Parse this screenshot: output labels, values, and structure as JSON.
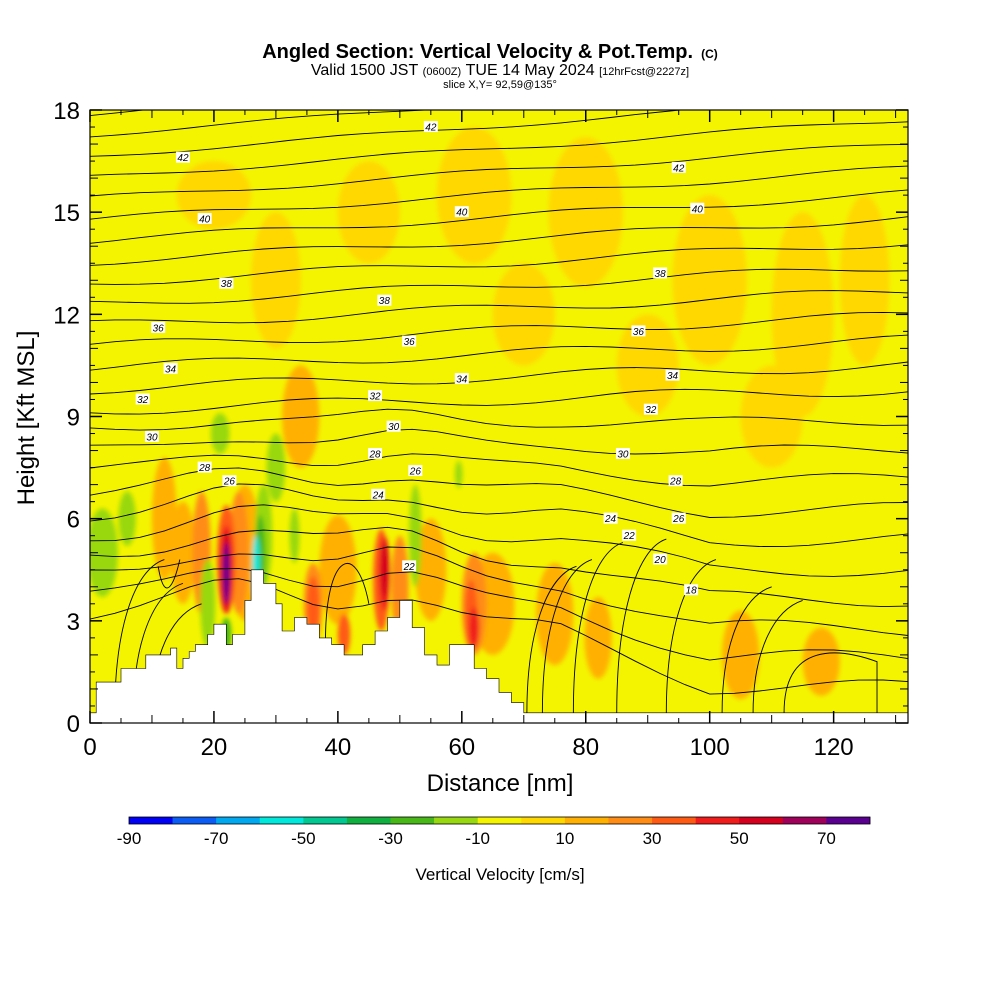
{
  "chart_data": {
    "type": "heatmap",
    "title": "Angled Section: Vertical Velocity & Pot.Temp.",
    "title_suffix": "(C)",
    "subtitle": {
      "valid_a": "Valid 1500 JST",
      "utc": "(0600Z)",
      "valid_b": "TUE 14 May 2024",
      "forecast": "[12hrFcst@2227z]"
    },
    "slice_label": "slice X,Y= 92,59@135°",
    "xlabel": "Distance [nm]",
    "ylabel": "Height [Kft MSL]",
    "xlim": [
      0,
      132
    ],
    "ylim": [
      0,
      18
    ],
    "x_ticks": [
      "0",
      "20",
      "40",
      "60",
      "80",
      "100",
      "120"
    ],
    "y_ticks": [
      "0",
      "3",
      "6",
      "9",
      "12",
      "15",
      "18"
    ],
    "colorbar": {
      "label": "Vertical Velocity [cm/s]",
      "bounds": [
        -90,
        -80,
        -70,
        -60,
        -50,
        -40,
        -30,
        -20,
        -10,
        0,
        10,
        20,
        30,
        40,
        50,
        60,
        70,
        80
      ],
      "tick_labels": [
        "-90",
        "-70",
        "-50",
        "-30",
        "-10",
        "10",
        "30",
        "50",
        "70"
      ],
      "colors": [
        "#0000f5",
        "#0a5cf5",
        "#00a8f0",
        "#00e8dc",
        "#00c890",
        "#10b040",
        "#48b818",
        "#98d810",
        "#f4f400",
        "#ffd800",
        "#ffb000",
        "#ff8c14",
        "#ff5a14",
        "#f01c1c",
        "#d4001e",
        "#9e005a",
        "#5a0090"
      ]
    },
    "terrain_profile": {
      "x": [
        0,
        1,
        1,
        5,
        5,
        9,
        9,
        13,
        13,
        14,
        14,
        15,
        15,
        16,
        16,
        17,
        17,
        19,
        19,
        20,
        20,
        22,
        22,
        23,
        23,
        25,
        25,
        26,
        26,
        28,
        28,
        30,
        30,
        31,
        31,
        33,
        33,
        35,
        35,
        37,
        37,
        39,
        39,
        41,
        41,
        44,
        44,
        46,
        46,
        48,
        48,
        50,
        50,
        52,
        52,
        54,
        54,
        56,
        56,
        58,
        58,
        62,
        62,
        64,
        64,
        66,
        66,
        68,
        68,
        70,
        70,
        132
      ],
      "y": [
        0.3,
        0.3,
        1.2,
        1.2,
        1.6,
        1.6,
        2.0,
        2.0,
        2.2,
        2.2,
        1.6,
        1.6,
        1.9,
        1.9,
        2.1,
        2.1,
        2.3,
        2.3,
        2.6,
        2.6,
        2.9,
        2.9,
        2.3,
        2.3,
        2.6,
        2.6,
        3.6,
        3.6,
        4.5,
        4.5,
        4.1,
        4.1,
        3.5,
        3.5,
        2.7,
        2.7,
        3.1,
        3.1,
        2.9,
        2.9,
        2.5,
        2.5,
        2.3,
        2.3,
        2.0,
        2.0,
        2.3,
        2.3,
        2.7,
        2.7,
        3.1,
        3.1,
        3.6,
        3.6,
        2.8,
        2.8,
        2.0,
        2.0,
        1.7,
        1.7,
        2.3,
        2.3,
        1.6,
        1.6,
        1.3,
        1.3,
        0.9,
        0.9,
        0.6,
        0.6,
        0.3,
        0.3
      ]
    },
    "contour_labels": [
      {
        "text": "42",
        "x": 55,
        "y": 17.5
      },
      {
        "text": "42",
        "x": 15,
        "y": 16.6
      },
      {
        "text": "42",
        "x": 95,
        "y": 16.3
      },
      {
        "text": "40",
        "x": 18.5,
        "y": 14.8
      },
      {
        "text": "40",
        "x": 60,
        "y": 15.0
      },
      {
        "text": "40",
        "x": 98,
        "y": 15.1
      },
      {
        "text": "38",
        "x": 22,
        "y": 12.9
      },
      {
        "text": "38",
        "x": 47.5,
        "y": 12.4
      },
      {
        "text": "38",
        "x": 92,
        "y": 13.2
      },
      {
        "text": "36",
        "x": 11,
        "y": 11.6
      },
      {
        "text": "36",
        "x": 51.5,
        "y": 11.2
      },
      {
        "text": "36",
        "x": 88.5,
        "y": 11.5
      },
      {
        "text": "34",
        "x": 13,
        "y": 10.4
      },
      {
        "text": "34",
        "x": 60,
        "y": 10.1
      },
      {
        "text": "34",
        "x": 94,
        "y": 10.2
      },
      {
        "text": "32",
        "x": 8.5,
        "y": 9.5
      },
      {
        "text": "32",
        "x": 46,
        "y": 9.6
      },
      {
        "text": "32",
        "x": 90.5,
        "y": 9.2
      },
      {
        "text": "30",
        "x": 10,
        "y": 8.4
      },
      {
        "text": "30",
        "x": 49,
        "y": 8.7
      },
      {
        "text": "30",
        "x": 86,
        "y": 7.9
      },
      {
        "text": "28",
        "x": 18.5,
        "y": 7.5
      },
      {
        "text": "28",
        "x": 46,
        "y": 7.9
      },
      {
        "text": "28",
        "x": 94.5,
        "y": 7.1
      },
      {
        "text": "26",
        "x": 22.5,
        "y": 7.1
      },
      {
        "text": "26",
        "x": 52.5,
        "y": 7.4
      },
      {
        "text": "26",
        "x": 95,
        "y": 6.0
      },
      {
        "text": "24",
        "x": 46.5,
        "y": 6.7
      },
      {
        "text": "24",
        "x": 84,
        "y": 6.0
      },
      {
        "text": "22",
        "x": 51.5,
        "y": 4.6
      },
      {
        "text": "22",
        "x": 87,
        "y": 5.5
      },
      {
        "text": "20",
        "x": 92,
        "y": 4.8
      },
      {
        "text": "18",
        "x": 97,
        "y": 3.9
      }
    ]
  }
}
